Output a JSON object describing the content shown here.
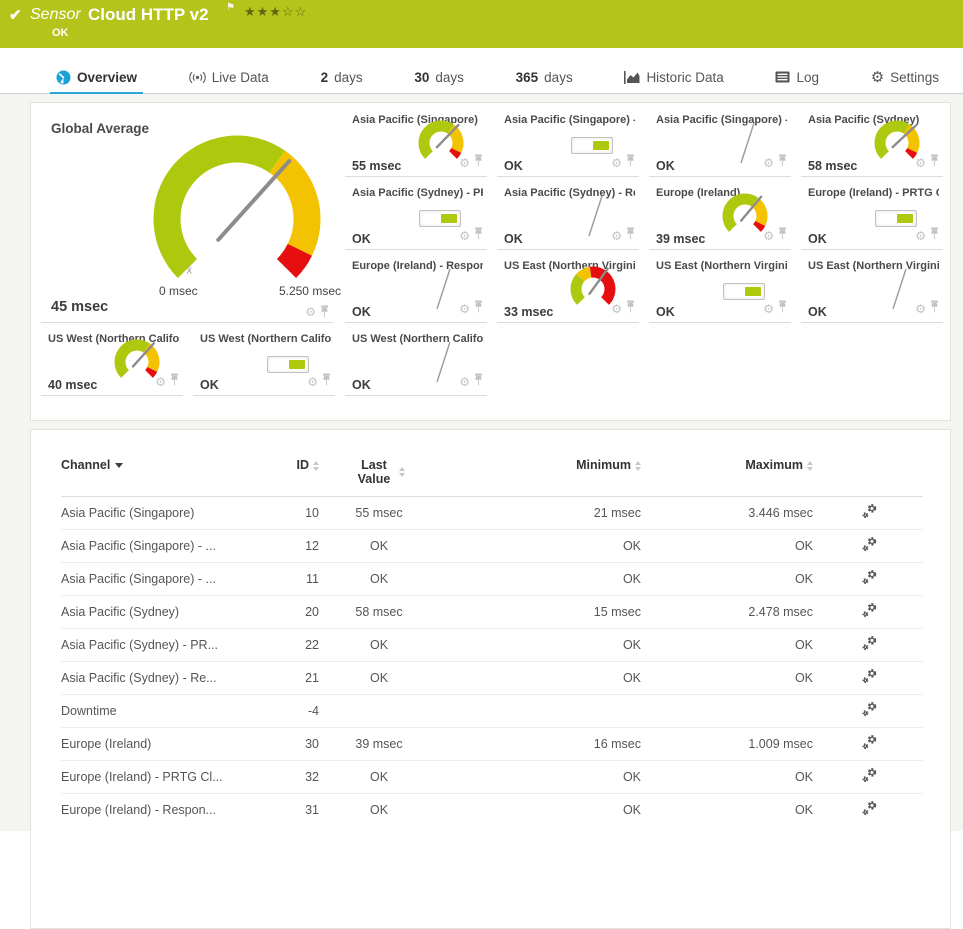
{
  "header": {
    "check_icon": "✔",
    "kind_label": "Sensor",
    "title": "Cloud HTTP v2",
    "flag_icon": "⚑",
    "stars_filled": "★★★",
    "stars_empty": "☆☆",
    "status": "OK"
  },
  "tabs": [
    {
      "label": "Overview",
      "icon": "gauge-icon",
      "active": true
    },
    {
      "label": "Live Data",
      "icon": "broadcast-icon"
    },
    {
      "num": "2",
      "label": "days"
    },
    {
      "num": "30",
      "label": "days"
    },
    {
      "num": "365",
      "label": "days"
    },
    {
      "label": "Historic Data",
      "icon": "area-chart-icon"
    },
    {
      "label": "Log",
      "icon": "log-icon"
    },
    {
      "label": "Settings",
      "icon": "gear-icon"
    }
  ],
  "colors": {
    "header_green": "#b5c41b",
    "accent_blue": "#2aa5d6",
    "gauge_green": "#aec80d",
    "gauge_yellow": "#f3c200",
    "gauge_red": "#e60e0e"
  },
  "gauge_segments": {
    "normal": [
      {
        "f": 0.0,
        "t": 0.63,
        "c": "#aec80d"
      },
      {
        "f": 0.63,
        "t": 0.93,
        "c": "#f3c200"
      },
      {
        "f": 0.93,
        "t": 1.0,
        "c": "#e60e0e"
      }
    ],
    "alert": [
      {
        "f": 0.0,
        "t": 0.32,
        "c": "#aec80d"
      },
      {
        "f": 0.32,
        "t": 0.47,
        "c": "#f3c200"
      },
      {
        "f": 0.47,
        "t": 1.0,
        "c": "#e60e0e"
      }
    ]
  },
  "global_gauge": {
    "title": "Global Average",
    "value": "45 msec",
    "scale_min": "0 msec",
    "scale_max": "5.250 msec",
    "avg_marker": "x̄",
    "variant": "normal",
    "needle_deg": 42
  },
  "panels": [
    {
      "title": "Asia Pacific (Singapore)",
      "type": "gauge",
      "value": "55 msec",
      "variant": "normal",
      "needle_deg": 44
    },
    {
      "title": "Asia Pacific (Singapore) - PR...",
      "type": "toggle",
      "value": "OK"
    },
    {
      "title": "Asia Pacific (Singapore) - Res...",
      "type": "needle",
      "value": "OK"
    },
    {
      "title": "Asia Pacific (Sydney)",
      "type": "gauge",
      "value": "58 msec",
      "variant": "normal",
      "needle_deg": 47
    },
    {
      "title": "Asia Pacific (Sydney) - PRTG ...",
      "type": "toggle",
      "value": "OK"
    },
    {
      "title": "Asia Pacific (Sydney) - Respo...",
      "type": "needle",
      "value": "OK"
    },
    {
      "title": "Europe (Ireland)",
      "type": "gauge",
      "value": "39 msec",
      "variant": "normal",
      "needle_deg": 40
    },
    {
      "title": "Europe (Ireland) - PRTG Cloud...",
      "type": "toggle",
      "value": "OK"
    },
    {
      "title": "Europe (Ireland) - Response C...",
      "type": "needle",
      "value": "OK"
    },
    {
      "title": "US East (Northern Virginia)",
      "type": "gauge",
      "value": "33 msec",
      "variant": "alert",
      "needle_deg": 36
    },
    {
      "title": "US East (Northern Virginia) - ...",
      "type": "toggle",
      "value": "OK"
    },
    {
      "title": "US East (Northern Virginia) - ...",
      "type": "needle",
      "value": "OK"
    },
    {
      "title": "US West (Northern California)",
      "type": "gauge",
      "value": "40 msec",
      "variant": "normal",
      "needle_deg": 42
    },
    {
      "title": "US West (Northern California)...",
      "type": "toggle",
      "value": "OK"
    },
    {
      "title": "US West (Northern California)...",
      "type": "needle",
      "value": "OK"
    }
  ],
  "table": {
    "headers": [
      {
        "label": "Channel",
        "sorted": "desc"
      },
      {
        "label": "ID"
      },
      {
        "label": "Last Value"
      },
      {
        "label": "Minimum"
      },
      {
        "label": "Maximum"
      }
    ],
    "rows": [
      {
        "channel": "Asia Pacific (Singapore)",
        "id": "10",
        "last": "55 msec",
        "min": "21 msec",
        "max": "3.446 msec"
      },
      {
        "channel": "Asia Pacific (Singapore) - ...",
        "id": "12",
        "last": "OK",
        "min": "OK",
        "max": "OK"
      },
      {
        "channel": "Asia Pacific (Singapore) - ...",
        "id": "11",
        "last": "OK",
        "min": "OK",
        "max": "OK"
      },
      {
        "channel": "Asia Pacific (Sydney)",
        "id": "20",
        "last": "58 msec",
        "min": "15 msec",
        "max": "2.478 msec"
      },
      {
        "channel": "Asia Pacific (Sydney) - PR...",
        "id": "22",
        "last": "OK",
        "min": "OK",
        "max": "OK"
      },
      {
        "channel": "Asia Pacific (Sydney) - Re...",
        "id": "21",
        "last": "OK",
        "min": "OK",
        "max": "OK"
      },
      {
        "channel": "Downtime",
        "id": "-4",
        "last": "",
        "min": "",
        "max": ""
      },
      {
        "channel": "Europe (Ireland)",
        "id": "30",
        "last": "39 msec",
        "min": "16 msec",
        "max": "1.009 msec"
      },
      {
        "channel": "Europe (Ireland) - PRTG Cl...",
        "id": "32",
        "last": "OK",
        "min": "OK",
        "max": "OK"
      },
      {
        "channel": "Europe (Ireland) - Respon...",
        "id": "31",
        "last": "OK",
        "min": "OK",
        "max": "OK"
      }
    ]
  }
}
